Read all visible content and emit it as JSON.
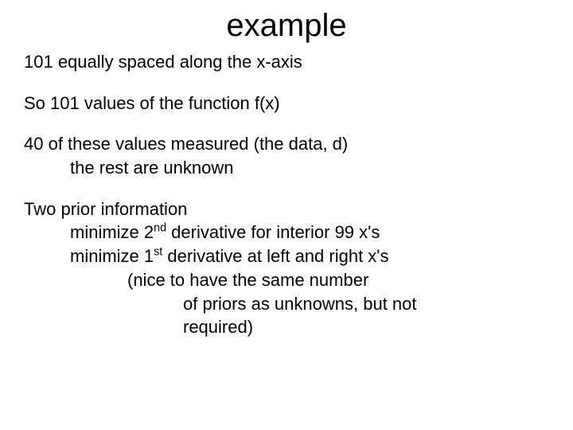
{
  "slide": {
    "title": "example",
    "title_fontsize": 40,
    "body_fontsize": 22,
    "text_color": "#000000",
    "background_color": "#ffffff",
    "font_family": "Arial",
    "line1": "101 equally spaced along the x-axis",
    "line2": "So 101 values of the function f(x)",
    "line3a": "40  of these values measured (the data, d)",
    "line3b": "the rest are unknown",
    "line4": "Two prior information",
    "line5a_pre": "minimize 2",
    "line5a_sup": "nd",
    "line5a_post": " derivative for interior 99 x's",
    "line5b_pre": "minimize 1",
    "line5b_sup": "st",
    "line5b_post": " derivative at left and right x's",
    "line6a": "(nice to have the same number",
    "line6b": "of priors as unknowns, but not",
    "line6c": "required)"
  }
}
